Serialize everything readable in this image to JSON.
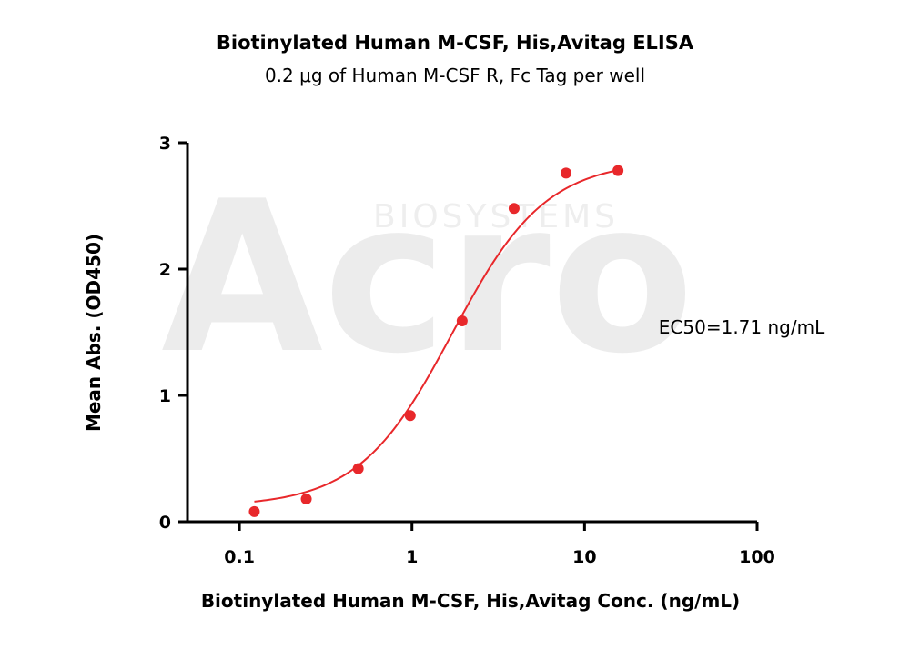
{
  "chart_data": {
    "type": "scatter",
    "title": "Biotinylated Human M-CSF, His,Avitag ELISA",
    "subtitle": "0.2 μg of Human M-CSF R, Fc Tag per well",
    "xlabel": "Biotinylated Human M-CSF, His,Avitag Conc. (ng/mL)",
    "ylabel": "Mean Abs. (OD450)",
    "xscale": "log",
    "xlim": [
      0.05,
      100
    ],
    "ylim": [
      0,
      3
    ],
    "x_ticks": [
      0.1,
      1,
      10,
      100
    ],
    "x_tick_labels": [
      "0.1",
      "1",
      "10",
      "100"
    ],
    "y_ticks": [
      0,
      1,
      2,
      3
    ],
    "y_tick_labels": [
      "0",
      "1",
      "2",
      "3"
    ],
    "grid": false,
    "color": "#e8282b",
    "points": {
      "x": [
        0.122,
        0.244,
        0.488,
        0.977,
        1.953,
        3.906,
        7.813,
        15.625
      ],
      "y": [
        0.08,
        0.18,
        0.42,
        0.84,
        1.59,
        2.48,
        2.76,
        2.78
      ]
    },
    "fit": {
      "model": "4PL",
      "bottom": 0.12,
      "top": 2.86,
      "ec50": 1.71,
      "hill": 1.6,
      "x_range": [
        0.122,
        15.625
      ]
    },
    "annotation": "EC50=1.71 ng/mL",
    "watermark": {
      "main": "Acro",
      "sub": "BIOSYSTEMS"
    }
  }
}
